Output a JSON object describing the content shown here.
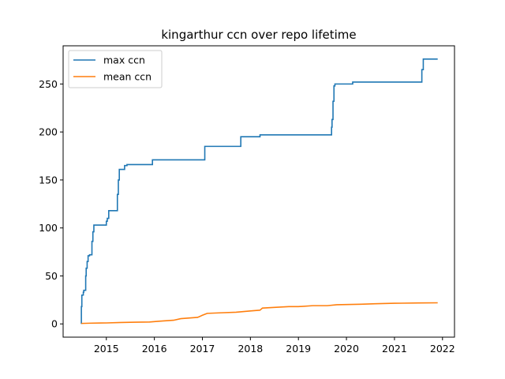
{
  "chart_data": {
    "type": "line",
    "title": "kingarthur ccn over repo lifetime",
    "xlabel": "",
    "ylabel": "",
    "xlim": [
      2014.1,
      2022.25
    ],
    "ylim": [
      -13.8,
      289.8
    ],
    "x_ticks": [
      2015,
      2016,
      2017,
      2018,
      2019,
      2020,
      2021,
      2022
    ],
    "x_tick_labels": [
      "2015",
      "2016",
      "2017",
      "2018",
      "2019",
      "2020",
      "2021",
      "2022"
    ],
    "y_ticks": [
      0,
      50,
      100,
      150,
      200,
      250
    ],
    "y_tick_labels": [
      "0",
      "50",
      "100",
      "150",
      "200",
      "250"
    ],
    "grid": false,
    "legend_position": "top-left",
    "series": [
      {
        "name": "max ccn",
        "color": "#1f77b4",
        "step": true,
        "x": [
          2014.48,
          2014.48,
          2014.49,
          2014.52,
          2014.53,
          2014.57,
          2014.58,
          2014.6,
          2014.62,
          2014.65,
          2014.7,
          2014.72,
          2014.74,
          2014.76,
          2015.0,
          2015.02,
          2015.05,
          2015.22,
          2015.23,
          2015.25,
          2015.27,
          2015.35,
          2015.38,
          2015.43,
          2015.96,
          2017.05,
          2017.8,
          2018.2,
          2019.68,
          2019.69,
          2019.7,
          2019.72,
          2019.74,
          2019.76,
          2020.13,
          2021.55,
          2021.57,
          2021.6,
          2021.9
        ],
        "values": [
          0,
          18,
          30,
          33,
          35,
          50,
          58,
          65,
          71,
          72,
          86,
          96,
          103,
          103,
          107,
          110,
          118,
          118,
          135,
          150,
          161,
          161,
          165,
          166,
          171,
          185,
          195,
          197,
          197,
          205,
          213,
          232,
          248,
          250,
          252,
          252,
          265,
          276,
          276
        ]
      },
      {
        "name": "mean ccn",
        "color": "#ff7f0e",
        "step": false,
        "x": [
          2014.48,
          2014.7,
          2015.0,
          2015.3,
          2015.6,
          2015.9,
          2016.1,
          2016.4,
          2016.55,
          2016.9,
          2017.0,
          2017.1,
          2017.4,
          2017.7,
          2018.0,
          2018.2,
          2018.25,
          2018.5,
          2018.8,
          2019.0,
          2019.3,
          2019.6,
          2019.8,
          2020.0,
          2020.3,
          2020.6,
          2021.0,
          2021.5,
          2021.9
        ],
        "values": [
          0.5,
          0.8,
          1.0,
          1.5,
          1.8,
          2.0,
          2.8,
          3.8,
          5.5,
          6.8,
          9.0,
          11.0,
          11.6,
          12.2,
          13.5,
          14.3,
          16.5,
          17.2,
          18.0,
          18.0,
          19.0,
          19.0,
          20.0,
          20.2,
          20.5,
          21.0,
          21.5,
          21.8,
          22.0
        ]
      }
    ]
  }
}
